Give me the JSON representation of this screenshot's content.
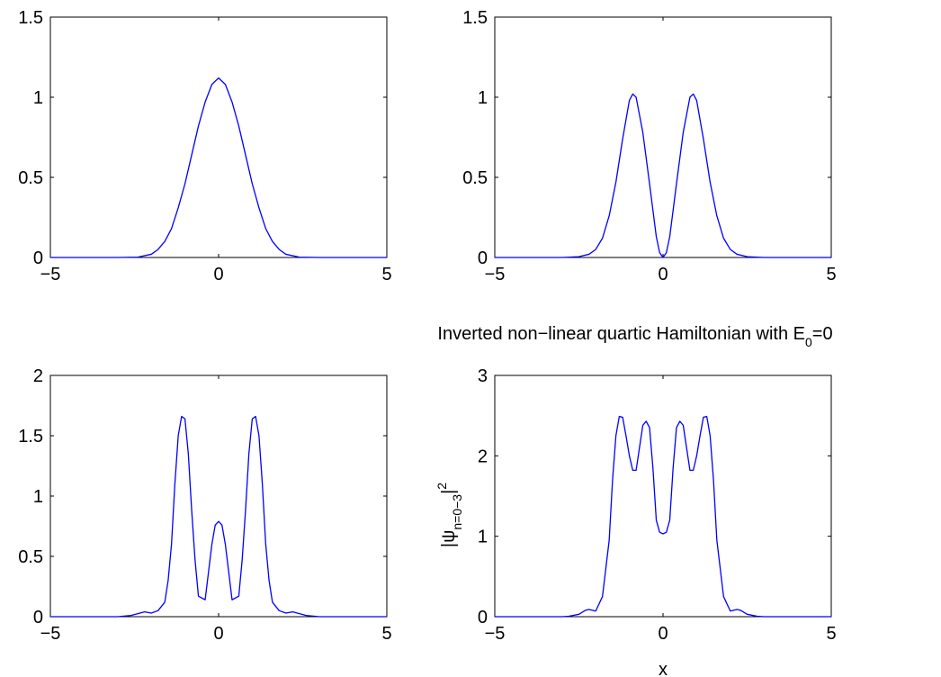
{
  "colors": {
    "line": "#0000ff",
    "axes": "#000000",
    "background": "#ffffff"
  },
  "chart_data": [
    {
      "type": "line",
      "title": "",
      "xlabel": "",
      "ylabel": "",
      "xlim": [
        -5,
        5
      ],
      "ylim": [
        0,
        1.5
      ],
      "xticks": [
        "−5",
        "0",
        "5"
      ],
      "yticks": [
        "0",
        "0.5",
        "1",
        "1.5"
      ],
      "grid": false,
      "series": [
        {
          "x": [
            -5,
            -4,
            -3,
            -2.4,
            -2.0,
            -1.8,
            -1.6,
            -1.4,
            -1.2,
            -1.0,
            -0.8,
            -0.6,
            -0.4,
            -0.2,
            0,
            0.2,
            0.4,
            0.6,
            0.8,
            1.0,
            1.2,
            1.4,
            1.6,
            1.8,
            2.0,
            2.4,
            3,
            4,
            5
          ],
          "y": [
            0,
            0,
            0,
            0.002,
            0.02,
            0.05,
            0.1,
            0.18,
            0.31,
            0.46,
            0.64,
            0.82,
            0.97,
            1.08,
            1.12,
            1.08,
            0.97,
            0.82,
            0.64,
            0.46,
            0.31,
            0.18,
            0.1,
            0.05,
            0.02,
            0.002,
            0,
            0,
            0
          ]
        }
      ]
    },
    {
      "type": "line",
      "title": "",
      "xlabel": "",
      "ylabel": "",
      "xlim": [
        -5,
        5
      ],
      "ylim": [
        0,
        1.5
      ],
      "xticks": [
        "−5",
        "0",
        "5"
      ],
      "yticks": [
        "0",
        "0.5",
        "1",
        "1.5"
      ],
      "grid": false,
      "series": [
        {
          "x": [
            -5,
            -4,
            -3,
            -2.5,
            -2.2,
            -2.0,
            -1.8,
            -1.6,
            -1.4,
            -1.2,
            -1.0,
            -0.9,
            -0.8,
            -0.6,
            -0.4,
            -0.2,
            -0.1,
            0,
            0.1,
            0.2,
            0.4,
            0.6,
            0.8,
            0.9,
            1.0,
            1.2,
            1.4,
            1.6,
            1.8,
            2.0,
            2.2,
            2.5,
            3,
            4,
            5
          ],
          "y": [
            0,
            0,
            0,
            0.005,
            0.02,
            0.05,
            0.12,
            0.26,
            0.47,
            0.74,
            0.98,
            1.02,
            1.0,
            0.78,
            0.46,
            0.13,
            0.03,
            0.0,
            0.03,
            0.13,
            0.46,
            0.78,
            1.0,
            1.02,
            0.98,
            0.74,
            0.47,
            0.26,
            0.12,
            0.05,
            0.02,
            0.005,
            0,
            0,
            0
          ]
        }
      ]
    },
    {
      "type": "line",
      "title": "",
      "xlabel": "",
      "ylabel": "",
      "xlim": [
        -5,
        5
      ],
      "ylim": [
        0,
        2
      ],
      "xticks": [
        "−5",
        "0",
        "5"
      ],
      "yticks": [
        "0",
        "0.5",
        "1",
        "1.5",
        "2"
      ],
      "grid": false,
      "series": [
        {
          "x": [
            -5,
            -4,
            -3,
            -2.6,
            -2.2,
            -2.0,
            -1.8,
            -1.6,
            -1.5,
            -1.4,
            -1.3,
            -1.2,
            -1.1,
            -1.0,
            -0.9,
            -0.8,
            -0.7,
            -0.6,
            -0.4,
            -0.2,
            -0.1,
            0,
            0.1,
            0.2,
            0.4,
            0.6,
            0.7,
            0.8,
            0.9,
            1.0,
            1.1,
            1.2,
            1.3,
            1.4,
            1.5,
            1.6,
            1.8,
            2.0,
            2.2,
            2.6,
            3,
            4,
            5
          ],
          "y": [
            0,
            0,
            0,
            0.01,
            0.04,
            0.03,
            0.05,
            0.12,
            0.3,
            0.6,
            1.1,
            1.5,
            1.66,
            1.64,
            1.35,
            0.88,
            0.47,
            0.17,
            0.14,
            0.6,
            0.76,
            0.79,
            0.76,
            0.6,
            0.14,
            0.17,
            0.47,
            0.88,
            1.35,
            1.64,
            1.66,
            1.5,
            1.1,
            0.6,
            0.3,
            0.12,
            0.05,
            0.03,
            0.04,
            0.01,
            0,
            0,
            0
          ]
        }
      ]
    },
    {
      "type": "line",
      "title": "Inverted non−linear quartic Hamiltonian with E",
      "title_subscript": "0",
      "title_suffix": "=0",
      "xlabel": "x",
      "ylabel": "|ψ",
      "ylabel_subscript": "n=0−3",
      "ylabel_suffix": "|",
      "ylabel_superscript": "2",
      "xlim": [
        -5,
        5
      ],
      "ylim": [
        0,
        3
      ],
      "xticks": [
        "−5",
        "0",
        "5"
      ],
      "yticks": [
        "0",
        "1",
        "2",
        "3"
      ],
      "grid": false,
      "series": [
        {
          "x": [
            -5,
            -4,
            -3,
            -2.8,
            -2.5,
            -2.3,
            -2.2,
            -2.0,
            -1.8,
            -1.6,
            -1.5,
            -1.4,
            -1.3,
            -1.2,
            -1.1,
            -1.0,
            -0.9,
            -0.8,
            -0.7,
            -0.6,
            -0.5,
            -0.4,
            -0.3,
            -0.2,
            -0.1,
            0,
            0.1,
            0.2,
            0.3,
            0.4,
            0.5,
            0.6,
            0.7,
            0.8,
            0.9,
            1.0,
            1.1,
            1.2,
            1.3,
            1.4,
            1.5,
            1.6,
            1.8,
            2.0,
            2.2,
            2.3,
            2.5,
            2.8,
            3,
            4,
            5
          ],
          "y": [
            0,
            0,
            0,
            0.005,
            0.03,
            0.08,
            0.09,
            0.07,
            0.25,
            0.95,
            1.7,
            2.25,
            2.49,
            2.48,
            2.25,
            2.0,
            1.82,
            1.82,
            2.1,
            2.38,
            2.43,
            2.35,
            1.85,
            1.2,
            1.05,
            1.03,
            1.05,
            1.2,
            1.85,
            2.35,
            2.43,
            2.38,
            2.1,
            1.82,
            1.82,
            2.0,
            2.25,
            2.48,
            2.49,
            2.25,
            1.7,
            0.95,
            0.25,
            0.07,
            0.09,
            0.08,
            0.03,
            0.005,
            0,
            0,
            0
          ]
        }
      ]
    }
  ]
}
